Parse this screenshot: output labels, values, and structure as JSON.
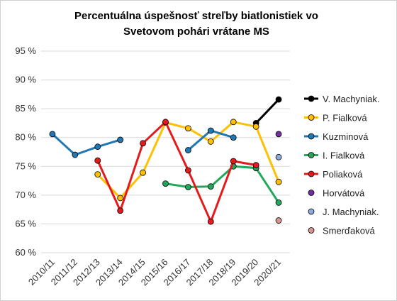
{
  "chart_data": {
    "type": "line",
    "title_lines": [
      "Percentuálna  úspešnosť streľby biatlonistiek vo",
      "Svetovom pohári vrátane MS"
    ],
    "xlabel": "",
    "ylabel": "",
    "categories": [
      "2010/11",
      "2011/12",
      "2012/13",
      "2013/14",
      "2014/15",
      "2015/16",
      "2016/17",
      "2017/18",
      "2018/19",
      "2019/20",
      "2020/21"
    ],
    "ylim": [
      60,
      95
    ],
    "yticks": [
      60,
      65,
      70,
      75,
      80,
      85,
      90,
      95
    ],
    "ytick_labels": [
      "60 %",
      "65 %",
      "70 %",
      "75 %",
      "80 %",
      "85 %",
      "90 %",
      "95 %"
    ],
    "grid": true,
    "legend_position": "right",
    "series": [
      {
        "name": "V. Machyniak.",
        "color": "#000000",
        "marker_fill": "#000000",
        "values": [
          null,
          null,
          null,
          null,
          null,
          null,
          null,
          null,
          null,
          82.5,
          86.6
        ]
      },
      {
        "name": "P. Fialková",
        "color": "#ffc000",
        "marker_fill": "#ffc000",
        "values": [
          null,
          null,
          73.6,
          69.5,
          73.9,
          82.6,
          81.6,
          79.3,
          82.7,
          81.9,
          72.3
        ]
      },
      {
        "name": "Kuzminová",
        "color": "#1f77b4",
        "marker_fill": "#1f77b4",
        "values": [
          80.6,
          77.0,
          78.4,
          79.6,
          null,
          null,
          77.8,
          81.2,
          80.0,
          null,
          null
        ]
      },
      {
        "name": "I. Fialková",
        "color": "#22a85a",
        "marker_fill": "#22a85a",
        "values": [
          null,
          null,
          null,
          null,
          null,
          72.0,
          71.4,
          71.5,
          75.0,
          74.7,
          68.7
        ]
      },
      {
        "name": "Poliaková",
        "color": "#e41a1c",
        "marker_fill": "#e41a1c",
        "values": [
          null,
          null,
          76.0,
          67.3,
          79.0,
          82.7,
          74.3,
          65.4,
          75.9,
          75.2,
          null
        ]
      },
      {
        "name": "Horvátová",
        "color": "#7030a0",
        "marker_fill": "#7030a0",
        "values": [
          null,
          null,
          null,
          null,
          null,
          null,
          null,
          null,
          null,
          null,
          80.6
        ]
      },
      {
        "name": "J. Machyniak.",
        "color": "#8eaadb",
        "marker_fill": "#8eaadb",
        "values": [
          null,
          null,
          null,
          null,
          null,
          null,
          null,
          null,
          null,
          null,
          76.6
        ]
      },
      {
        "name": "Smerďaková",
        "color": "#d99594",
        "marker_fill": "#d99594",
        "values": [
          null,
          null,
          null,
          null,
          null,
          null,
          null,
          null,
          null,
          null,
          65.6
        ]
      }
    ]
  }
}
